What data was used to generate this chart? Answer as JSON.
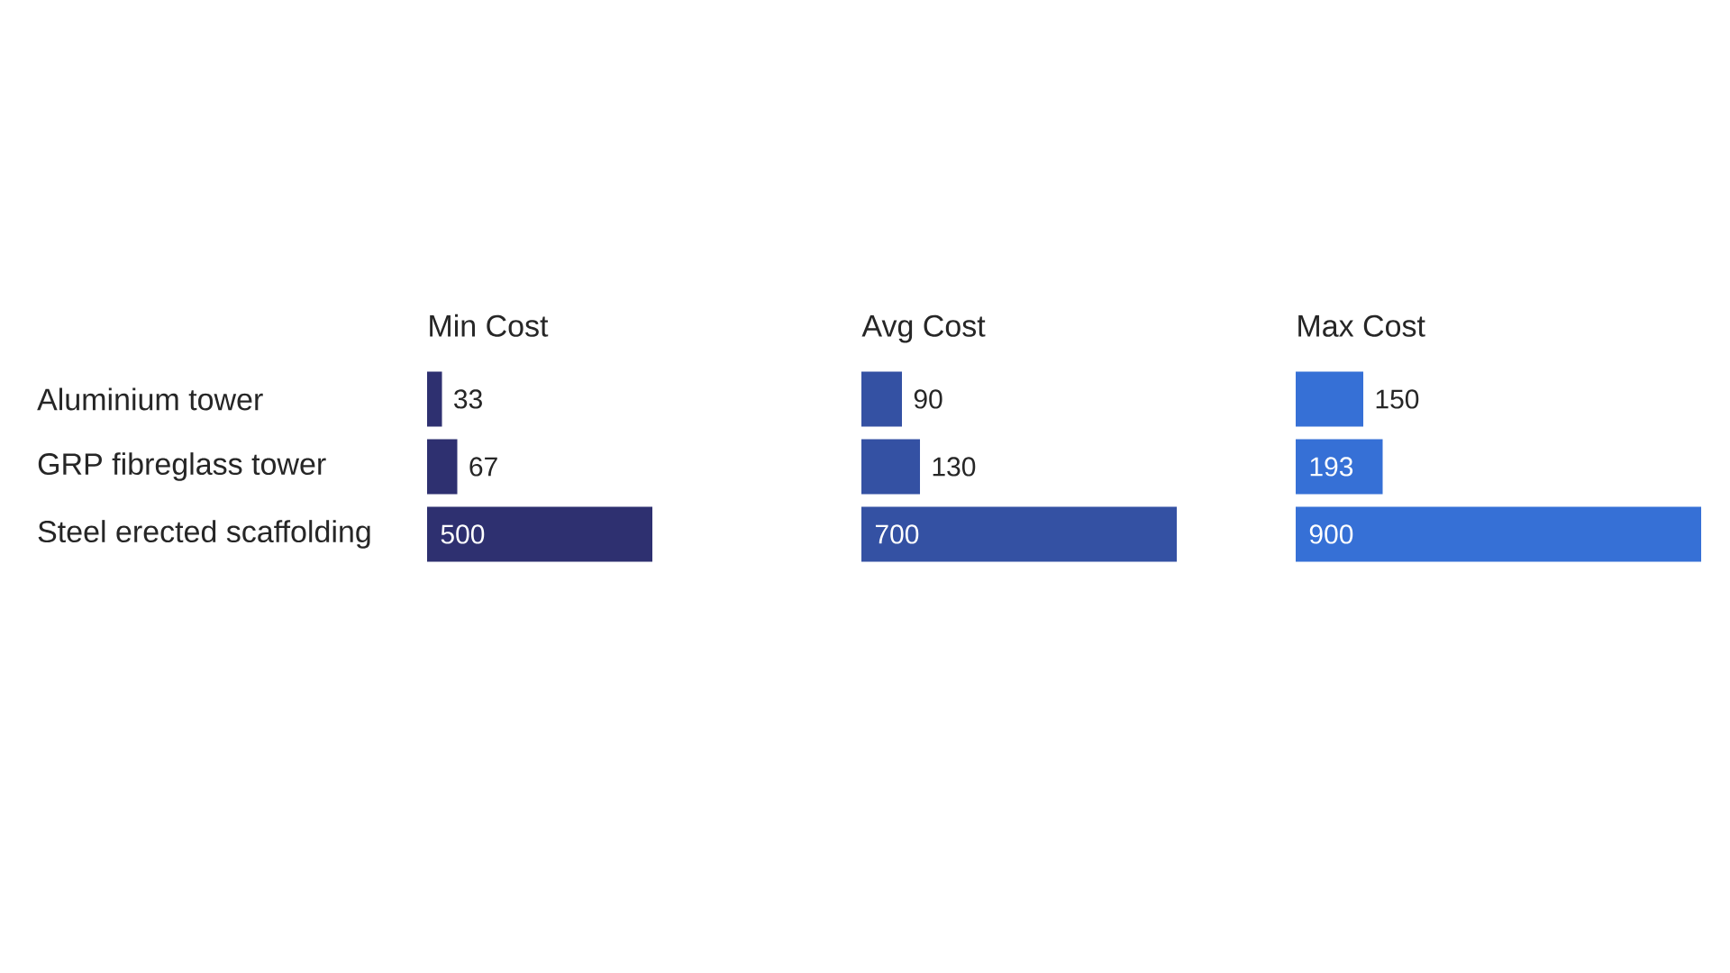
{
  "chart_data": [
    {
      "type": "bar",
      "orientation": "horizontal",
      "title": "Min Cost",
      "categories": [
        "Aluminium tower",
        "GRP fibreglass tower",
        "Steel erected scaffolding"
      ],
      "values": [
        33,
        67,
        500
      ],
      "color": "#2e3070",
      "data_labels": true,
      "tick_labels": "y"
    },
    {
      "type": "bar",
      "orientation": "horizontal",
      "title": "Avg Cost",
      "categories": [
        null,
        null,
        null
      ],
      "values": [
        90,
        130,
        700
      ],
      "color": "#3451a3",
      "data_labels": true
    },
    {
      "type": "bar",
      "orientation": "horizontal",
      "title": "Max Cost",
      "categories": [
        null,
        null,
        null
      ],
      "values": [
        150,
        193,
        900
      ],
      "color": "#3670d6",
      "data_labels": true
    }
  ]
}
